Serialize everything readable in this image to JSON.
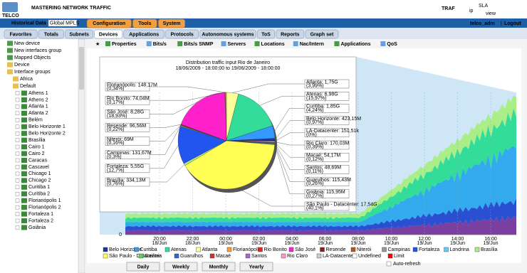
{
  "header": {
    "logo": "TELCO",
    "tagline": "MASTERING NETWORK TRAFFIC",
    "product": "TRAF",
    "product_ip": "ip",
    "product_sla": "SLA",
    "product_view": "view"
  },
  "menu": {
    "historical": "Historical Data",
    "select": "Global MPLS",
    "tabs": [
      "Configuration",
      "Tools",
      "System"
    ],
    "user": "telco_adm",
    "separator": "|",
    "logout": "Logout"
  },
  "subtabs": [
    "Favorites",
    "Totals",
    "Subnets",
    "Devices",
    "Applications",
    "Protocols",
    "Autonomous systems",
    "ToS",
    "Reports",
    "Graph set"
  ],
  "toolbar": [
    "Properties",
    "Bits/s",
    "Bits/s SNMP",
    "Servers",
    "Locations",
    "Nac/Intern",
    "Applications",
    "QoS"
  ],
  "tree": {
    "top": [
      "New device",
      "New interfaces group",
      "Mapped Objects",
      "Device",
      "Interface groups"
    ],
    "groups": [
      "Africa",
      "Default"
    ],
    "interfaces": [
      "Athens 1",
      "Athens 2",
      "Atlanta 1",
      "Atlanta 2",
      "Belém",
      "Belo Horizonte 1",
      "Belo Horizonte 2",
      "Brasília",
      "Cairo 1",
      "Cairo 2",
      "Caracas",
      "Cascavel",
      "Chicago 1",
      "Chicago 2",
      "Curitiba 1",
      "Curitiba 2",
      "Florianópolis 1",
      "Florianópolis 2",
      "Fortaleza 1",
      "Fortaleza 2",
      "Goiânia"
    ]
  },
  "pie": {
    "title": "Distribution traffic input Rio de Janeiro",
    "subtitle": "18/06/2009 - 18:00:00 to 19/06/2009 - 18:00:00",
    "slices": [
      {
        "label": "Atlanta: 1,75G",
        "percent": 3.99,
        "percent_label": "(3,99%)",
        "color": "#ffff99"
      },
      {
        "label": "Atenas: 6,98G",
        "percent": 15.97,
        "percent_label": "(15,97%)",
        "color": "#33dd99"
      },
      {
        "label": "Curitiba: 1,85G",
        "percent": 4.24,
        "percent_label": "(4,24%)",
        "color": "#3399ff"
      },
      {
        "label": "Belo Horizonte: 423,15M",
        "percent": 0.97,
        "percent_label": "(0,97%)",
        "color": "#223399"
      },
      {
        "label": "LA-Datacenter: 151,51k",
        "percent": 0,
        "percent_label": "(0%)",
        "color": "#cccccc"
      },
      {
        "label": "Rio Claro: 170,03M",
        "percent": 0.39,
        "percent_label": "(0,39%)",
        "color": "#ff99cc"
      },
      {
        "label": "Macaé: 54,17M",
        "percent": 0.12,
        "percent_label": "(0,12%)",
        "color": "#cc3333"
      },
      {
        "label": "Santos: 48,69M",
        "percent": 0.11,
        "percent_label": "(0,11%)",
        "color": "#aa66cc"
      },
      {
        "label": "Guarulhos: 115,43M",
        "percent": 0.26,
        "percent_label": "(0,26%)",
        "color": "#3366cc"
      },
      {
        "label": "Goiânia: 115,95M",
        "percent": 0.27,
        "percent_label": "(0,27%)",
        "color": "#66cc66"
      },
      {
        "label": "São Paulo - Datacenter: 17,54G",
        "percent": 40.1,
        "percent_label": "(40,1%)",
        "color": "#ffff55"
      },
      {
        "label": "Brasília: 334,13M",
        "percent": 0.76,
        "percent_label": "(0,76%)",
        "color": "#aaee88"
      },
      {
        "label": "Fortaleza: 5,55G",
        "percent": 12.7,
        "percent_label": "(12,7%)",
        "color": "#2255ee"
      },
      {
        "label": "Campinas: 131,67M",
        "percent": 0.3,
        "percent_label": "(0,3%)",
        "color": "#999999"
      },
      {
        "label": "Niterói: 69M",
        "percent": 0.16,
        "percent_label": "(0,16%)",
        "color": "#bb5522"
      },
      {
        "label": "Resende: 96,56M",
        "percent": 0.22,
        "percent_label": "(0,22%)",
        "color": "#882222"
      },
      {
        "label": "São José: 8,28G",
        "percent": 18.93,
        "percent_label": "(18,93%)",
        "color": "#ff22cc"
      },
      {
        "label": "Rio Bonito: 74,04M",
        "percent": 0.17,
        "percent_label": "(0,17%)",
        "color": "#ee2222"
      },
      {
        "label": "Florianópolis: 148,17M",
        "percent": 0.34,
        "percent_label": "(0,34%)",
        "color": "#ff9933"
      }
    ]
  },
  "chart": {
    "y_label": "0",
    "x_labels": [
      {
        "time": "20:00",
        "date": "18/Jun"
      },
      {
        "time": "22:00",
        "date": "18/Jun"
      },
      {
        "time": "00:00",
        "date": "19/Jun"
      },
      {
        "time": "02:00",
        "date": "19/Jun"
      },
      {
        "time": "04:00",
        "date": "19/Jun"
      },
      {
        "time": "06:00",
        "date": "19/Jun"
      },
      {
        "time": "08:00",
        "date": "19/Jun"
      },
      {
        "time": "10:00",
        "date": "19/Jun"
      },
      {
        "time": "12:00",
        "date": "19/Jun"
      },
      {
        "time": "14:00",
        "date": "19/Jun"
      },
      {
        "time": "16:00",
        "date": "19/Jun"
      }
    ],
    "legend": [
      {
        "name": "Belo Horizonte",
        "color": "#223399"
      },
      {
        "name": "Curitiba",
        "color": "#3399ff"
      },
      {
        "name": "Atenas",
        "color": "#33dd99"
      },
      {
        "name": "Atlanta",
        "color": "#ffff99"
      },
      {
        "name": "Florianópolis",
        "color": "#ff9933"
      },
      {
        "name": "Rio Bonito",
        "color": "#ee2222"
      },
      {
        "name": "São José",
        "color": "#ff22cc"
      },
      {
        "name": "Resende",
        "color": "#882222"
      },
      {
        "name": "Niterói",
        "color": "#bb5522"
      },
      {
        "name": "Campinas",
        "color": "#999999"
      },
      {
        "name": "Fortaleza",
        "color": "#2255ee"
      },
      {
        "name": "Londrina",
        "color": "#66ccff"
      },
      {
        "name": "Brasília",
        "color": "#aaee88"
      },
      {
        "name": "São Paulo - Datacenter",
        "color": "#ffff55"
      },
      {
        "name": "Goiânia",
        "color": "#66cc66"
      },
      {
        "name": "Guarulhos",
        "color": "#3366cc"
      },
      {
        "name": "Macaé",
        "color": "#cc3333"
      },
      {
        "name": "Santos",
        "color": "#aa66cc"
      },
      {
        "name": "Rio Claro",
        "color": "#ff99cc"
      },
      {
        "name": "LA-Datacenter",
        "color": "#cccccc"
      },
      {
        "name": "Undefined",
        "color": "#ffffff"
      },
      {
        "name": "Limit",
        "color": "#ff0000"
      }
    ]
  },
  "buttons": [
    "Daily",
    "Weekly",
    "Monthly",
    "Yearly"
  ],
  "auto_refresh": "Auto-refresh"
}
